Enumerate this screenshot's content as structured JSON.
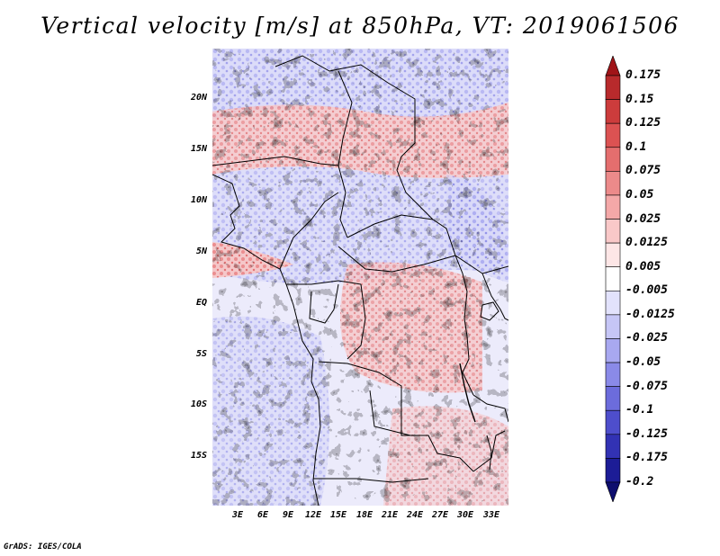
{
  "title": "Vertical velocity [m/s] at 850hPa, VT: 2019061506",
  "footer": "GrADS: IGES/COLA",
  "latitude_labels": [
    "20N",
    "15N",
    "10N",
    "5N",
    "EQ",
    "5S",
    "10S",
    "15S"
  ],
  "longitude_labels": [
    "3E",
    "6E",
    "9E",
    "12E",
    "15E",
    "18E",
    "21E",
    "24E",
    "27E",
    "30E",
    "33E"
  ],
  "colorbar": {
    "levels": [
      "0.175",
      "0.15",
      "0.125",
      "0.1",
      "0.075",
      "0.05",
      "0.025",
      "0.0125",
      "0.005",
      "-0.005",
      "-0.0125",
      "-0.025",
      "-0.05",
      "-0.075",
      "-0.1",
      "-0.125",
      "-0.175",
      "-0.2"
    ],
    "colors": [
      "#a01418",
      "#b82a2c",
      "#cc3c3c",
      "#dc5252",
      "#e46e6e",
      "#ec8a8a",
      "#f4a8a8",
      "#f9c8c8",
      "#fde6e6",
      "#ffffff",
      "#e2e2fc",
      "#c6c6f6",
      "#a8a8f0",
      "#8a8ae8",
      "#6c6cdc",
      "#4e4ecc",
      "#3232b4",
      "#1c1c96",
      "#0e0e6e"
    ]
  },
  "map": {
    "region": "Central Africa",
    "field": "Vertical velocity at 850hPa",
    "lon_range": [
      0,
      35
    ],
    "lat_range": [
      -20,
      25
    ]
  }
}
